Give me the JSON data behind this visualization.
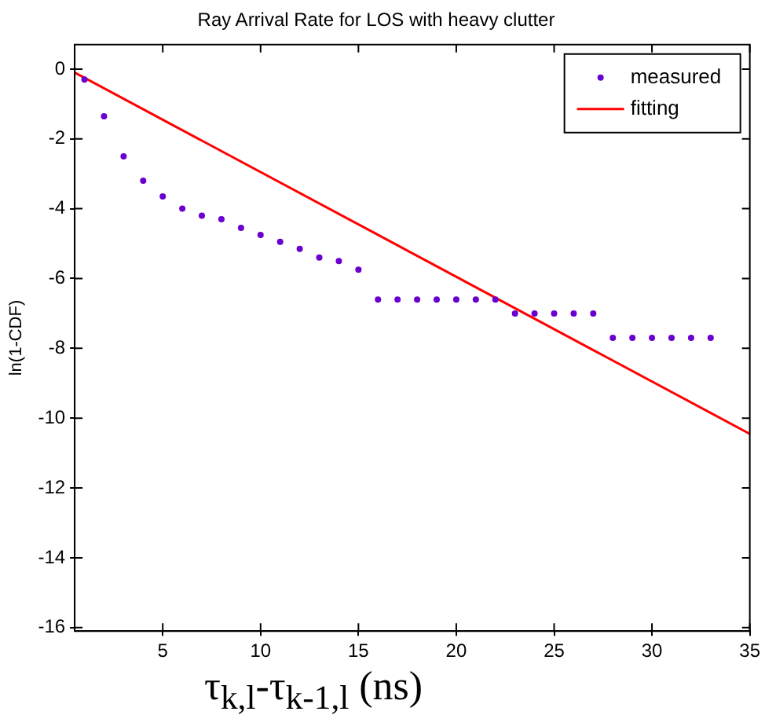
{
  "chart_data": {
    "type": "scatter",
    "title": "Ray Arrival Rate for LOS with heavy clutter",
    "xlabel": "τ$_{k,l}$-τ$_{k-1,l}$ (ns)",
    "ylabel": "ln(1-CDF)",
    "xlim": [
      0.5,
      35
    ],
    "ylim": [
      -16.1,
      0.7
    ],
    "xticks": [
      5,
      10,
      15,
      20,
      25,
      30,
      35
    ],
    "yticks": [
      -16,
      -14,
      -12,
      -10,
      -8,
      -6,
      -4,
      -2,
      0
    ],
    "legend": "top right",
    "series": [
      {
        "name": "measured",
        "marker": "circle",
        "color": "#6a00d0",
        "x": [
          1,
          2,
          3,
          4,
          5,
          6,
          7,
          8,
          9,
          10,
          11,
          12,
          13,
          14,
          15,
          16,
          17,
          18,
          19,
          20,
          21,
          22,
          23,
          24,
          25,
          26,
          27,
          28,
          29,
          30,
          31,
          32,
          33
        ],
        "values": [
          -0.3,
          -1.35,
          -2.5,
          -3.2,
          -3.65,
          -4.0,
          -4.2,
          -4.3,
          -4.55,
          -4.75,
          -4.95,
          -5.15,
          -5.4,
          -5.5,
          -5.75,
          -6.6,
          -6.6,
          -6.6,
          -6.6,
          -6.6,
          -6.6,
          -6.6,
          -7.0,
          -7.0,
          -7.0,
          -7.0,
          -7.0,
          -7.7,
          -7.7,
          -7.7,
          -7.7,
          -7.7,
          -7.7
        ]
      },
      {
        "name": "fitting",
        "type": "line",
        "marker": "none",
        "line_style": "solid",
        "color": "#ff0000",
        "x": [
          0.5,
          35
        ],
        "values": [
          -0.1,
          -10.45
        ]
      }
    ]
  }
}
